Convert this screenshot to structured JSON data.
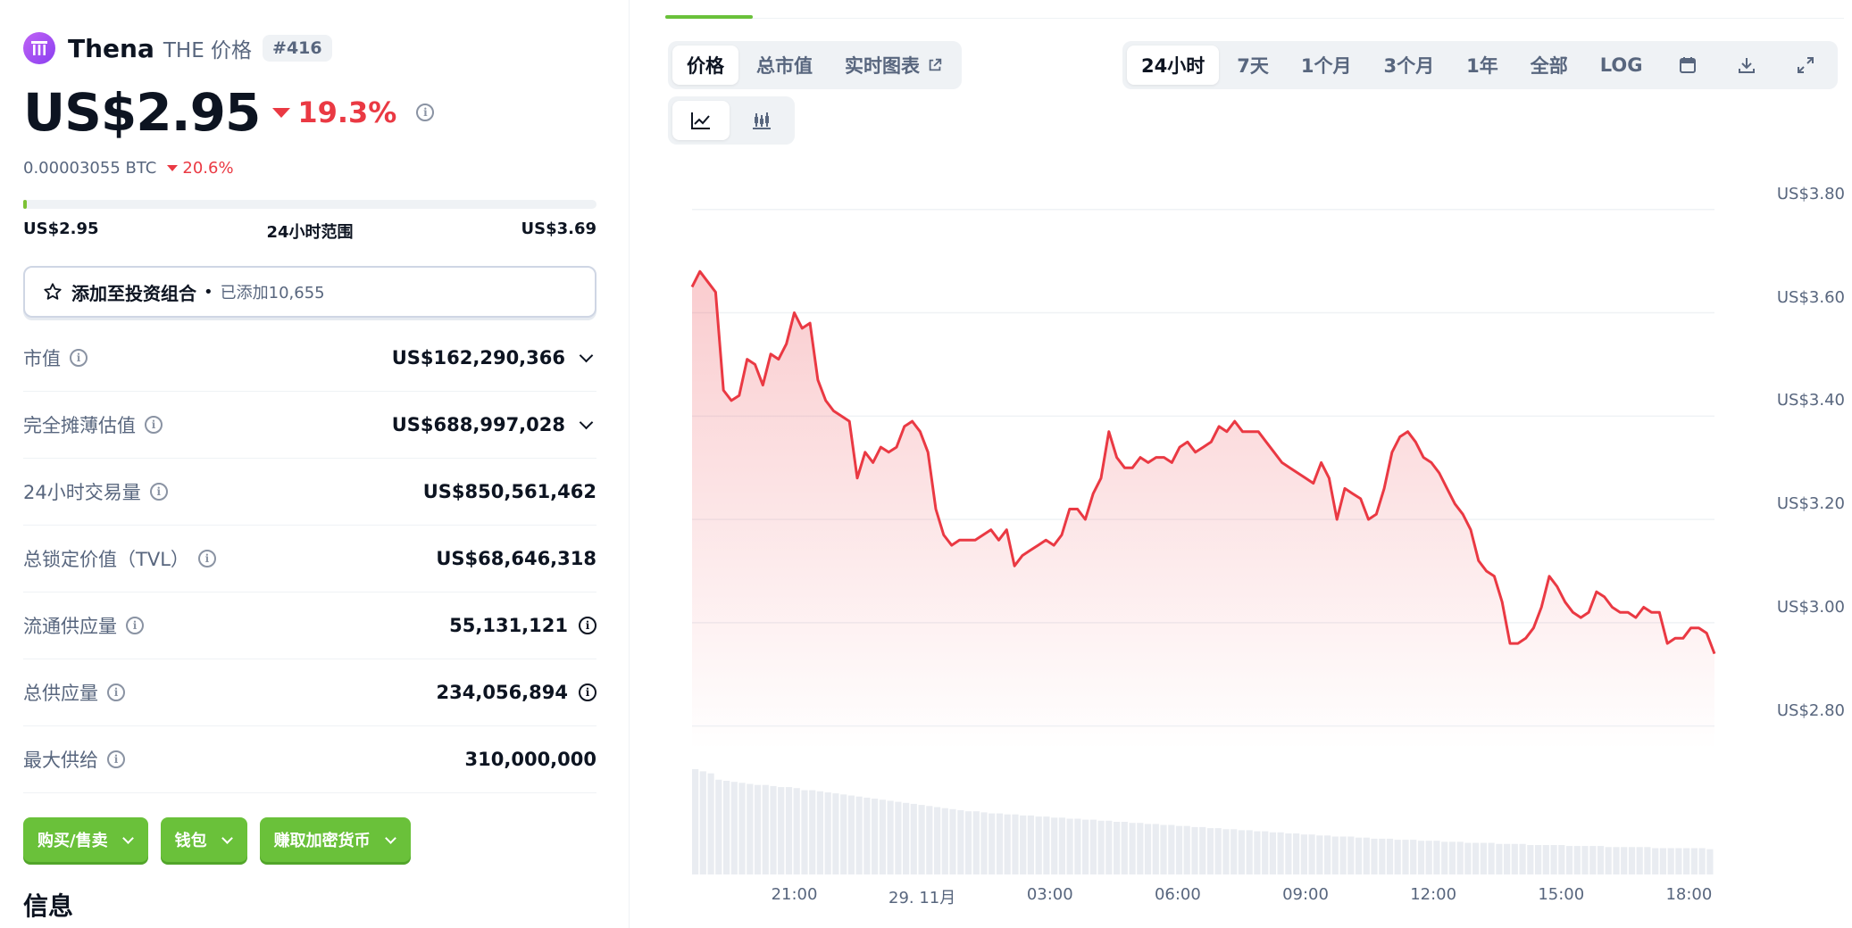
{
  "coin": {
    "name": "Thena",
    "symbol": "THE 价格",
    "rank": "#416",
    "price": "US$2.95",
    "change_24h": "19.3%",
    "btc_price": "0.00003055 BTC",
    "btc_change": "20.6%"
  },
  "range": {
    "low": "US$2.95",
    "label": "24小时范围",
    "high": "US$3.69",
    "position_fraction": 0.0
  },
  "portfolio": {
    "label": "添加至投资组合",
    "dot": "•",
    "added": "已添加10,655"
  },
  "stats": [
    {
      "key": "市值",
      "value": "US$162,290,366"
    },
    {
      "key": "完全摊薄估值",
      "value": "US$688,997,028"
    },
    {
      "key": "24小时交易量",
      "value": "US$850,561,462"
    },
    {
      "key": "总锁定价值（TVL）",
      "value": "US$68,646,318"
    },
    {
      "key": "流通供应量",
      "value": "55,131,121"
    },
    {
      "key": "总供应量",
      "value": "234,056,894"
    },
    {
      "key": "最大供给",
      "value": "310,000,000"
    }
  ],
  "actions": [
    {
      "label": "购买/售卖"
    },
    {
      "label": "钱包"
    },
    {
      "label": "赚取加密货币"
    }
  ],
  "info_title": "信息",
  "chart_tabs": {
    "price": "价格",
    "market_cap": "总市值",
    "live_chart": "实时图表"
  },
  "time_ranges": [
    "24小时",
    "7天",
    "1个月",
    "3个月",
    "1年",
    "全部",
    "LOG"
  ],
  "active_time_range": "24小时",
  "icons": {
    "calendar": "calendar-icon",
    "download": "download-icon",
    "expand": "expand-icon",
    "line_chart": "line-chart-icon",
    "candlestick": "candlestick-icon",
    "star": "star-icon",
    "info": "info-icon"
  },
  "colors": {
    "line": "#ea3943",
    "accent_green": "#6ac13a",
    "negative": "#ea3943"
  },
  "chart_data": {
    "type": "area",
    "ylim": [
      2.72,
      3.86
    ],
    "y_ticks": [
      "US$3.80",
      "US$3.60",
      "US$3.40",
      "US$3.20",
      "US$3.00",
      "US$2.80"
    ],
    "y_tick_values": [
      3.8,
      3.6,
      3.4,
      3.2,
      3.0,
      2.8
    ],
    "x_ticks": [
      "21:00",
      "29. 11月",
      "03:00",
      "06:00",
      "09:00",
      "12:00",
      "15:00",
      "18:00"
    ],
    "x_tick_hours": [
      2.4,
      5.4,
      8.4,
      11.4,
      14.4,
      17.4,
      20.4,
      23.4
    ],
    "x_range_hours": [
      0,
      24
    ],
    "series": [
      {
        "values": [
          3.65,
          3.68,
          3.66,
          3.64,
          3.45,
          3.43,
          3.44,
          3.51,
          3.5,
          3.46,
          3.52,
          3.51,
          3.54,
          3.6,
          3.57,
          3.58,
          3.47,
          3.43,
          3.41,
          3.4,
          3.39,
          3.28,
          3.33,
          3.31,
          3.34,
          3.33,
          3.34,
          3.38,
          3.39,
          3.37,
          3.33,
          3.22,
          3.17,
          3.15,
          3.16,
          3.16,
          3.16,
          3.17,
          3.18,
          3.16,
          3.18,
          3.11,
          3.13,
          3.14,
          3.15,
          3.16,
          3.15,
          3.17,
          3.22,
          3.22,
          3.2,
          3.25,
          3.28,
          3.37,
          3.32,
          3.3,
          3.3,
          3.32,
          3.31,
          3.32,
          3.32,
          3.31,
          3.34,
          3.35,
          3.33,
          3.34,
          3.35,
          3.38,
          3.37,
          3.39,
          3.37,
          3.37,
          3.37,
          3.35,
          3.33,
          3.31,
          3.3,
          3.29,
          3.28,
          3.27,
          3.31,
          3.28,
          3.2,
          3.26,
          3.25,
          3.24,
          3.2,
          3.21,
          3.26,
          3.33,
          3.36,
          3.37,
          3.35,
          3.32,
          3.31,
          3.29,
          3.26,
          3.23,
          3.21,
          3.18,
          3.12,
          3.1,
          3.09,
          3.04,
          2.96,
          2.96,
          2.97,
          2.99,
          3.03,
          3.09,
          3.07,
          3.04,
          3.02,
          3.01,
          3.02,
          3.06,
          3.05,
          3.03,
          3.02,
          3.02,
          3.01,
          3.03,
          3.02,
          3.02,
          2.96,
          2.97,
          2.97,
          2.99,
          2.99,
          2.98,
          2.94
        ]
      }
    ],
    "volume_relative": [
      1.0,
      0.98,
      0.96,
      0.9,
      0.89,
      0.88,
      0.87,
      0.86,
      0.85,
      0.85,
      0.84,
      0.83,
      0.83,
      0.82,
      0.8,
      0.8,
      0.79,
      0.78,
      0.77,
      0.76,
      0.75,
      0.74,
      0.73,
      0.72,
      0.71,
      0.7,
      0.69,
      0.68,
      0.67,
      0.66,
      0.65,
      0.64,
      0.63,
      0.62,
      0.61,
      0.6,
      0.6,
      0.59,
      0.58,
      0.58,
      0.57,
      0.57,
      0.56,
      0.56,
      0.55,
      0.55,
      0.54,
      0.54,
      0.53,
      0.53,
      0.52,
      0.52,
      0.51,
      0.51,
      0.5,
      0.5,
      0.49,
      0.49,
      0.48,
      0.48,
      0.47,
      0.47,
      0.46,
      0.46,
      0.45,
      0.45,
      0.44,
      0.44,
      0.43,
      0.43,
      0.42,
      0.42,
      0.41,
      0.41,
      0.4,
      0.4,
      0.39,
      0.39,
      0.38,
      0.38,
      0.37,
      0.37,
      0.36,
      0.36,
      0.36,
      0.35,
      0.35,
      0.34,
      0.34,
      0.34,
      0.33,
      0.33,
      0.33,
      0.32,
      0.32,
      0.32,
      0.31,
      0.31,
      0.31,
      0.3,
      0.3,
      0.3,
      0.3,
      0.29,
      0.29,
      0.29,
      0.29,
      0.28,
      0.28,
      0.28,
      0.28,
      0.28,
      0.27,
      0.27,
      0.27,
      0.27,
      0.27,
      0.26,
      0.26,
      0.26,
      0.26,
      0.26,
      0.26,
      0.25,
      0.25,
      0.25,
      0.25,
      0.25,
      0.25,
      0.25,
      0.24
    ]
  }
}
